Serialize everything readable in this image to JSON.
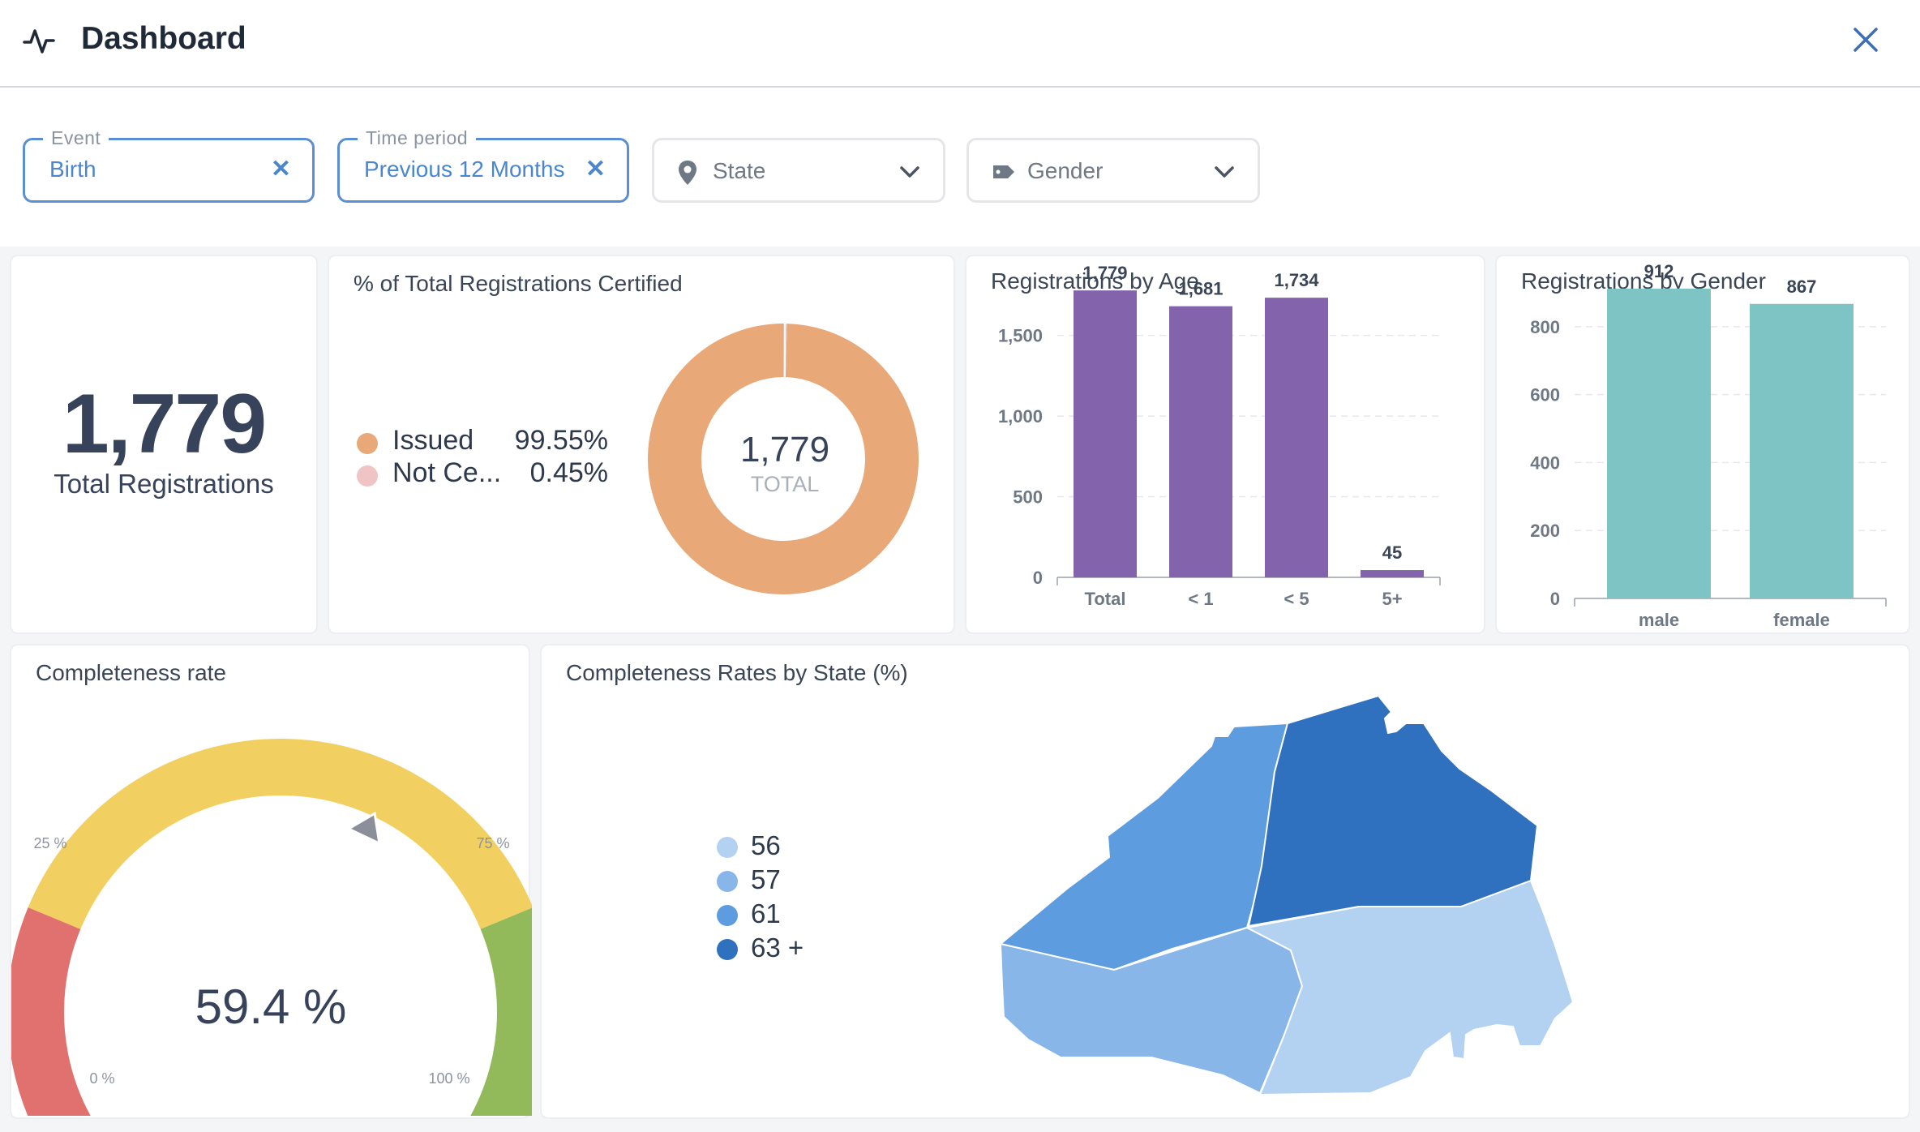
{
  "header": {
    "title": "Dashboard"
  },
  "filters": {
    "event": {
      "legend": "Event",
      "value": "Birth"
    },
    "time_period": {
      "legend": "Time period",
      "value": "Previous 12 Months"
    },
    "state": {
      "label": "State"
    },
    "gender": {
      "label": "Gender"
    }
  },
  "total": {
    "value": "1,779",
    "label": "Total Registrations"
  },
  "certified": {
    "title": "% of Total Registrations Certified",
    "legend": [
      {
        "label": "Issued",
        "pct": "99.55%",
        "color": "#e8a878"
      },
      {
        "label": "Not Ce...",
        "pct": "0.45%",
        "color": "#f0c4c4"
      }
    ],
    "center_value": "1,779",
    "center_label": "TOTAL"
  },
  "completeness": {
    "title": "Completeness rate",
    "value": "59.4 %",
    "ticks": [
      "0 %",
      "25 %",
      "75 %",
      "100 %"
    ]
  },
  "map": {
    "title": "Completeness Rates by State (%)",
    "legend": [
      {
        "label": "56",
        "color": "#b3d2f2"
      },
      {
        "label": "57",
        "color": "#88b6e8"
      },
      {
        "label": "61",
        "color": "#5d9ddf"
      },
      {
        "label": "63 +",
        "color": "#3071bf"
      }
    ]
  },
  "chart_data": [
    {
      "type": "pie",
      "title": "% of Total Registrations Certified",
      "categories": [
        "Issued",
        "Not Certified"
      ],
      "values": [
        99.55,
        0.45
      ],
      "colors": [
        "#e8a878",
        "#f0c4c4"
      ]
    },
    {
      "type": "bar",
      "title": "Registrations by Age",
      "categories": [
        "Total",
        "< 1",
        "< 5",
        "5+"
      ],
      "values": [
        1779,
        1681,
        1734,
        45
      ],
      "value_labels": [
        "1,779",
        "1,681",
        "1,734",
        "45"
      ],
      "yticks": [
        "0",
        "500",
        "1,000",
        "1,500"
      ],
      "ylim": [
        0,
        1800
      ],
      "color": "#8463ad"
    },
    {
      "type": "bar",
      "title": "Registrations by Gender",
      "categories": [
        "male",
        "female"
      ],
      "values": [
        912,
        867
      ],
      "value_labels": [
        "912",
        "867"
      ],
      "yticks": [
        "0",
        "200",
        "400",
        "600",
        "800"
      ],
      "ylim": [
        0,
        950
      ],
      "color": "#7fc4c4"
    },
    {
      "type": "gauge",
      "title": "Completeness rate",
      "value": 59.4,
      "range": [
        0,
        100
      ]
    }
  ]
}
